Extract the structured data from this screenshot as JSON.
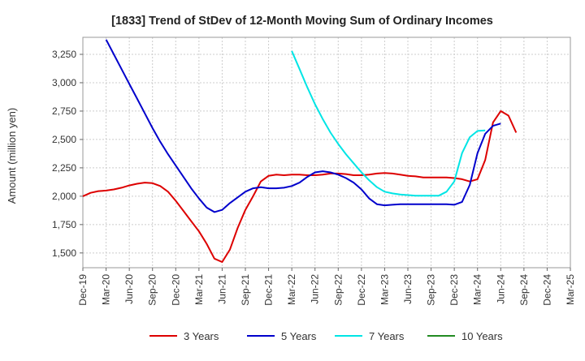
{
  "chart_data": {
    "type": "line",
    "title": "[1833]  Trend of StDev of 12-Month Moving Sum of Ordinary Incomes",
    "xlabel": "",
    "ylabel": "Amount (million yen)",
    "x_ticks": [
      "Dec-19",
      "Mar-20",
      "Jun-20",
      "Sep-20",
      "Dec-20",
      "Mar-21",
      "Jun-21",
      "Sep-21",
      "Dec-21",
      "Mar-22",
      "Jun-22",
      "Sep-22",
      "Dec-22",
      "Mar-23",
      "Jun-23",
      "Sep-23",
      "Dec-23",
      "Mar-24",
      "Jun-24",
      "Sep-24",
      "Dec-24",
      "Mar-25"
    ],
    "y_ticks": [
      "1,500",
      "1,750",
      "2,000",
      "2,250",
      "2,500",
      "2,750",
      "3,000",
      "3,250"
    ],
    "y_tick_values": [
      1500,
      1750,
      2000,
      2250,
      2500,
      2750,
      3000,
      3250
    ],
    "ylim": [
      1370,
      3400
    ],
    "grid": true,
    "legend_position": "bottom",
    "series": [
      {
        "name": "3 Years",
        "color": "#dd0000",
        "start_month": 0,
        "values": [
          2000,
          2030,
          2045,
          2050,
          2060,
          2075,
          2095,
          2110,
          2120,
          2115,
          2090,
          2040,
          1960,
          1870,
          1780,
          1690,
          1580,
          1450,
          1420,
          1530,
          1720,
          1880,
          2000,
          2130,
          2180,
          2190,
          2185,
          2190,
          2190,
          2185,
          2185,
          2190,
          2200,
          2200,
          2195,
          2185,
          2185,
          2190,
          2200,
          2205,
          2200,
          2190,
          2180,
          2175,
          2165,
          2165,
          2165,
          2165,
          2160,
          2150,
          2130,
          2150,
          2320,
          2650,
          2750,
          2710,
          2560
        ]
      },
      {
        "name": "5 Years",
        "color": "#0000cc",
        "start_month": 3,
        "values": [
          3380,
          3250,
          3120,
          2990,
          2860,
          2730,
          2600,
          2480,
          2370,
          2270,
          2170,
          2070,
          1980,
          1900,
          1860,
          1880,
          1940,
          1990,
          2040,
          2070,
          2080,
          2070,
          2070,
          2075,
          2090,
          2120,
          2170,
          2210,
          2220,
          2210,
          2190,
          2160,
          2120,
          2060,
          1980,
          1930,
          1920,
          1925,
          1930,
          1930,
          1930,
          1930,
          1930,
          1930,
          1930,
          1925,
          1950,
          2100,
          2380,
          2550,
          2620,
          2640
        ]
      },
      {
        "name": "7 Years",
        "color": "#00e5e5",
        "start_month": 27,
        "values": [
          3280,
          3120,
          2960,
          2810,
          2680,
          2560,
          2460,
          2370,
          2290,
          2210,
          2140,
          2080,
          2040,
          2025,
          2015,
          2010,
          2005,
          2005,
          2005,
          2005,
          2040,
          2130,
          2380,
          2520,
          2575,
          2580
        ]
      },
      {
        "name": "10 Years",
        "color": "#228b22",
        "start_month": 0,
        "values": []
      }
    ]
  }
}
